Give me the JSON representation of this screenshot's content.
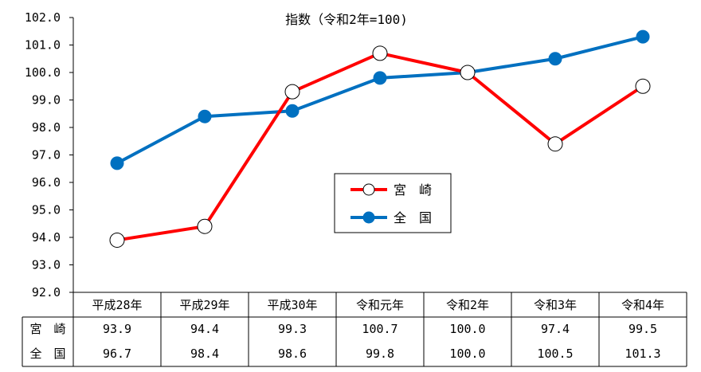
{
  "chart_data": {
    "type": "line",
    "title": "指数（令和2年=100)",
    "categories": [
      "平成28年",
      "平成29年",
      "平成30年",
      "令和元年",
      "令和2年",
      "令和3年",
      "令和4年"
    ],
    "ylim": [
      92.0,
      102.0
    ],
    "yticks": [
      "92.0",
      "93.0",
      "94.0",
      "95.0",
      "96.0",
      "97.0",
      "98.0",
      "99.0",
      "100.0",
      "101.0",
      "102.0"
    ],
    "series": [
      {
        "name": "宮　崎",
        "values": [
          93.9,
          94.4,
          99.3,
          100.7,
          100.0,
          97.4,
          99.5
        ],
        "labels": [
          "93.9",
          "94.4",
          "99.3",
          "100.7",
          "100.0",
          "97.4",
          "99.5"
        ],
        "color": "#ff0000",
        "marker": "open-circle"
      },
      {
        "name": "全　国",
        "values": [
          96.7,
          98.4,
          98.6,
          99.8,
          100.0,
          100.5,
          101.3
        ],
        "labels": [
          "96.7",
          "98.4",
          "98.6",
          "99.8",
          "100.0",
          "100.5",
          "101.3"
        ],
        "color": "#0070c0",
        "marker": "filled-circle"
      }
    ],
    "table_row_labels": [
      "宮　崎",
      "全　国"
    ],
    "grid": false,
    "legend_position": "center-right"
  }
}
